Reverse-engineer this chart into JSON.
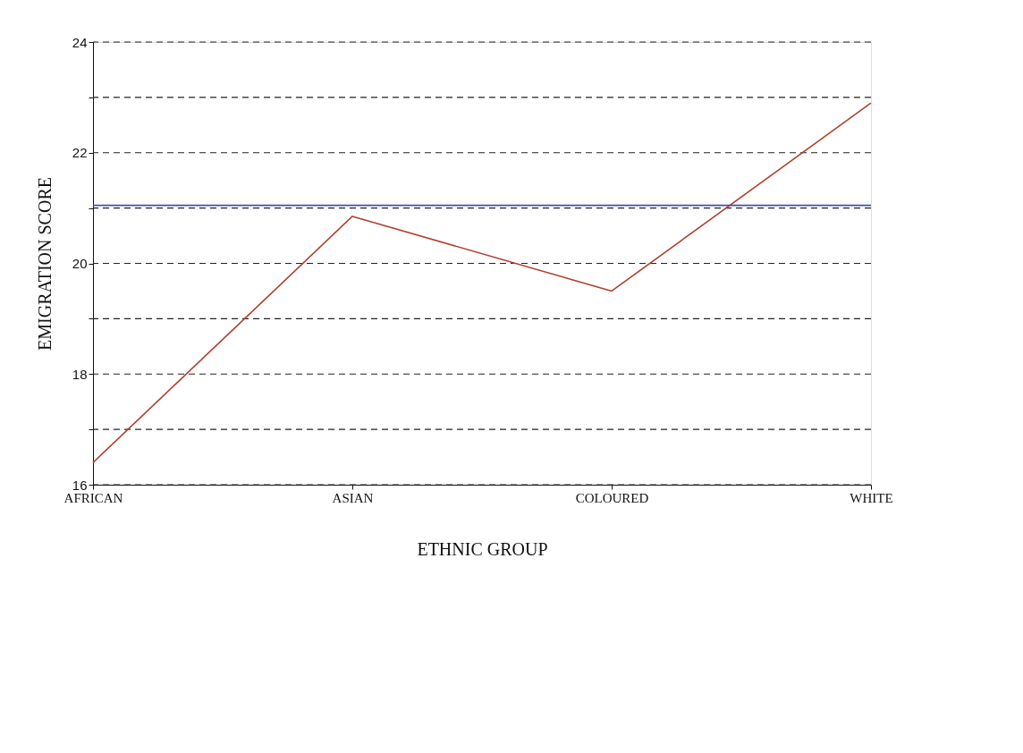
{
  "chart_data": {
    "type": "line",
    "xlabel": "ETHNIC GROUP",
    "ylabel": "EMIGRATION SCORE",
    "categories": [
      "AFRICAN",
      "ASIAN",
      "COLOURED",
      "WHITE"
    ],
    "series": [
      {
        "color": "#b0402e",
        "values": [
          16.4,
          20.85,
          19.5,
          22.9
        ]
      }
    ],
    "ylim": [
      16,
      24
    ],
    "yticks": [
      16,
      {
        "value": 17,
        "label": null
      },
      18,
      {
        "value": 19,
        "label": null
      },
      20,
      {
        "value": 21,
        "label": null
      },
      22,
      {
        "value": 23,
        "label": null
      },
      24
    ],
    "ref_lines": [
      {
        "axis": "y",
        "value": 21.05,
        "color": "#3f51a8",
        "line_style": "solid"
      }
    ],
    "grid": "y",
    "marker": "none",
    "line_style": "solid"
  }
}
